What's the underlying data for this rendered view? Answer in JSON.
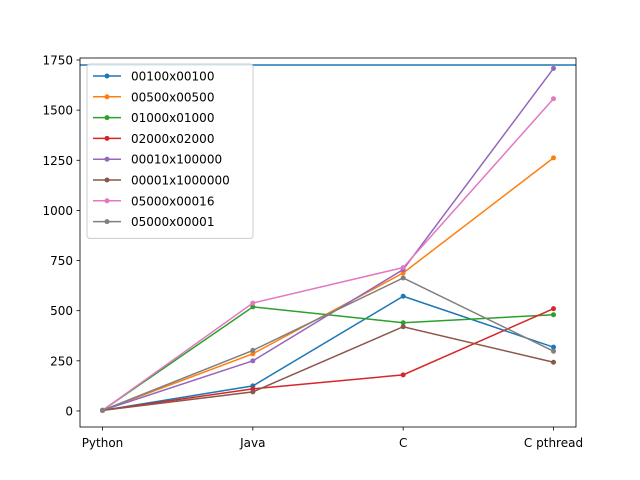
{
  "chart_data": {
    "type": "line",
    "title": "",
    "xlabel": "",
    "ylabel": "",
    "categories": [
      "Python",
      "Java",
      "C",
      "C pthread"
    ],
    "ylim": [
      -80,
      1760
    ],
    "yticks": [
      0,
      250,
      500,
      750,
      1000,
      1250,
      1500,
      1750
    ],
    "hline": 1725,
    "hline_color": "#1f77b4",
    "grid": false,
    "legend_position": "top-left",
    "series": [
      {
        "name": "00100x00100",
        "color": "#1f77b4",
        "values": [
          3,
          125,
          572,
          318
        ]
      },
      {
        "name": "00500x00500",
        "color": "#ff7f0e",
        "values": [
          3,
          285,
          688,
          1262
        ]
      },
      {
        "name": "01000x01000",
        "color": "#2ca02c",
        "values": [
          3,
          519,
          440,
          480
        ]
      },
      {
        "name": "02000x02000",
        "color": "#d62728",
        "values": [
          3,
          110,
          180,
          510
        ]
      },
      {
        "name": "00010x100000",
        "color": "#9467bd",
        "values": [
          3,
          250,
          705,
          1708
        ]
      },
      {
        "name": "00001x1000000",
        "color": "#8c564b",
        "values": [
          3,
          95,
          420,
          243
        ]
      },
      {
        "name": "05000x00016",
        "color": "#e377c2",
        "values": [
          3,
          538,
          715,
          1557
        ]
      },
      {
        "name": "05000x00001",
        "color": "#7f7f7f",
        "values": [
          3,
          302,
          663,
          298
        ]
      }
    ]
  }
}
